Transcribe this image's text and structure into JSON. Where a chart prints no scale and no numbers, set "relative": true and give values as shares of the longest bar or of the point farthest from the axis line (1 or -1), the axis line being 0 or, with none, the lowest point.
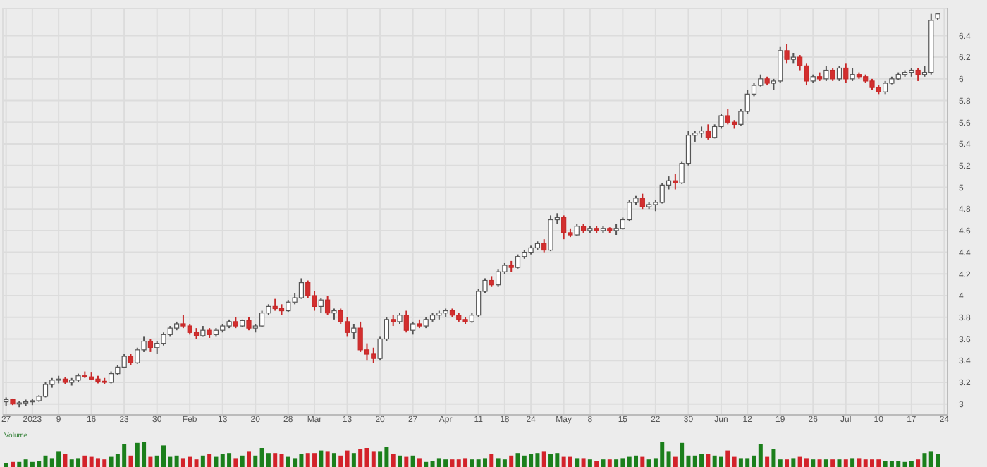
{
  "chart_data": [
    {
      "type": "candlestick",
      "categories": [
        "27",
        null,
        null,
        null,
        "2023",
        null,
        null,
        null,
        "9",
        null,
        null,
        null,
        null,
        "16",
        null,
        null,
        null,
        null,
        "23",
        null,
        null,
        null,
        null,
        "30",
        null,
        null,
        null,
        null,
        "Feb",
        null,
        null,
        null,
        null,
        "13",
        null,
        null,
        null,
        null,
        "20",
        null,
        null,
        null,
        null,
        "28",
        null,
        null,
        null,
        "Mar",
        null,
        null,
        null,
        null,
        "13",
        null,
        null,
        null,
        null,
        "20",
        null,
        null,
        null,
        null,
        "27",
        null,
        null,
        null,
        null,
        "Apr",
        null,
        null,
        null,
        null,
        "11",
        null,
        null,
        null,
        "18",
        null,
        null,
        null,
        "24",
        null,
        null,
        null,
        null,
        "May",
        null,
        null,
        null,
        "8",
        null,
        null,
        null,
        null,
        "15",
        null,
        null,
        null,
        null,
        "22",
        null,
        null,
        null,
        null,
        "30",
        null,
        null,
        null,
        null,
        "Jun",
        null,
        null,
        null,
        "12",
        null,
        null,
        null,
        null,
        "19",
        null,
        null,
        null,
        null,
        "26",
        null,
        null,
        null,
        null,
        "Jul",
        null,
        null,
        null,
        null,
        "10",
        null,
        null,
        null,
        null,
        "17",
        null,
        null,
        null,
        null,
        "24"
      ],
      "ohlc": [
        [
          3.02,
          3.06,
          2.98,
          3.04
        ],
        [
          3.04,
          3.05,
          2.99,
          3.0
        ],
        [
          3.0,
          3.03,
          2.97,
          3.01
        ],
        [
          3.01,
          3.04,
          2.98,
          3.02
        ],
        [
          3.02,
          3.05,
          2.99,
          3.03
        ],
        [
          3.03,
          3.08,
          3.02,
          3.07
        ],
        [
          3.07,
          3.2,
          3.06,
          3.18
        ],
        [
          3.18,
          3.24,
          3.15,
          3.22
        ],
        [
          3.22,
          3.26,
          3.19,
          3.23
        ],
        [
          3.23,
          3.25,
          3.18,
          3.2
        ],
        [
          3.2,
          3.24,
          3.17,
          3.22
        ],
        [
          3.22,
          3.28,
          3.2,
          3.26
        ],
        [
          3.26,
          3.3,
          3.24,
          3.25
        ],
        [
          3.25,
          3.29,
          3.22,
          3.23
        ],
        [
          3.23,
          3.26,
          3.19,
          3.21
        ],
        [
          3.21,
          3.24,
          3.18,
          3.2
        ],
        [
          3.2,
          3.3,
          3.19,
          3.28
        ],
        [
          3.28,
          3.36,
          3.27,
          3.34
        ],
        [
          3.34,
          3.46,
          3.33,
          3.44
        ],
        [
          3.44,
          3.46,
          3.36,
          3.38
        ],
        [
          3.38,
          3.52,
          3.37,
          3.5
        ],
        [
          3.5,
          3.62,
          3.48,
          3.58
        ],
        [
          3.58,
          3.6,
          3.48,
          3.52
        ],
        [
          3.52,
          3.58,
          3.46,
          3.56
        ],
        [
          3.56,
          3.66,
          3.54,
          3.64
        ],
        [
          3.64,
          3.72,
          3.62,
          3.7
        ],
        [
          3.7,
          3.76,
          3.68,
          3.74
        ],
        [
          3.74,
          3.82,
          3.7,
          3.72
        ],
        [
          3.72,
          3.74,
          3.64,
          3.66
        ],
        [
          3.66,
          3.7,
          3.6,
          3.63
        ],
        [
          3.63,
          3.72,
          3.62,
          3.68
        ],
        [
          3.68,
          3.7,
          3.61,
          3.64
        ],
        [
          3.64,
          3.7,
          3.62,
          3.68
        ],
        [
          3.68,
          3.74,
          3.66,
          3.72
        ],
        [
          3.72,
          3.78,
          3.7,
          3.76
        ],
        [
          3.76,
          3.8,
          3.7,
          3.72
        ],
        [
          3.72,
          3.78,
          3.71,
          3.77
        ],
        [
          3.77,
          3.8,
          3.68,
          3.7
        ],
        [
          3.7,
          3.74,
          3.66,
          3.72
        ],
        [
          3.72,
          3.86,
          3.71,
          3.84
        ],
        [
          3.84,
          3.92,
          3.82,
          3.9
        ],
        [
          3.9,
          3.97,
          3.86,
          3.88
        ],
        [
          3.88,
          3.92,
          3.82,
          3.86
        ],
        [
          3.86,
          3.96,
          3.85,
          3.94
        ],
        [
          3.94,
          4.02,
          3.92,
          3.98
        ],
        [
          3.98,
          4.16,
          3.97,
          4.12
        ],
        [
          4.12,
          4.14,
          3.98,
          4.0
        ],
        [
          4.0,
          4.04,
          3.86,
          3.9
        ],
        [
          3.9,
          3.98,
          3.84,
          3.96
        ],
        [
          3.96,
          4.0,
          3.82,
          3.84
        ],
        [
          3.84,
          3.88,
          3.78,
          3.86
        ],
        [
          3.86,
          3.88,
          3.74,
          3.76
        ],
        [
          3.76,
          3.8,
          3.62,
          3.66
        ],
        [
          3.66,
          3.74,
          3.6,
          3.7
        ],
        [
          3.7,
          3.76,
          3.48,
          3.5
        ],
        [
          3.5,
          3.56,
          3.4,
          3.46
        ],
        [
          3.46,
          3.52,
          3.38,
          3.42
        ],
        [
          3.42,
          3.62,
          3.4,
          3.6
        ],
        [
          3.6,
          3.8,
          3.58,
          3.78
        ],
        [
          3.78,
          3.82,
          3.72,
          3.76
        ],
        [
          3.76,
          3.84,
          3.74,
          3.82
        ],
        [
          3.82,
          3.86,
          3.66,
          3.68
        ],
        [
          3.68,
          3.76,
          3.64,
          3.74
        ],
        [
          3.74,
          3.78,
          3.7,
          3.72
        ],
        [
          3.72,
          3.8,
          3.7,
          3.78
        ],
        [
          3.78,
          3.84,
          3.76,
          3.82
        ],
        [
          3.82,
          3.86,
          3.78,
          3.84
        ],
        [
          3.84,
          3.88,
          3.8,
          3.86
        ],
        [
          3.86,
          3.88,
          3.8,
          3.82
        ],
        [
          3.82,
          3.84,
          3.76,
          3.78
        ],
        [
          3.78,
          3.8,
          3.74,
          3.76
        ],
        [
          3.76,
          3.84,
          3.75,
          3.82
        ],
        [
          3.82,
          4.06,
          3.8,
          4.04
        ],
        [
          4.04,
          4.16,
          4.02,
          4.14
        ],
        [
          4.14,
          4.18,
          4.08,
          4.1
        ],
        [
          4.1,
          4.24,
          4.08,
          4.22
        ],
        [
          4.22,
          4.3,
          4.2,
          4.28
        ],
        [
          4.28,
          4.32,
          4.22,
          4.26
        ],
        [
          4.26,
          4.38,
          4.25,
          4.36
        ],
        [
          4.36,
          4.42,
          4.34,
          4.4
        ],
        [
          4.4,
          4.46,
          4.38,
          4.44
        ],
        [
          4.44,
          4.5,
          4.42,
          4.48
        ],
        [
          4.48,
          4.52,
          4.4,
          4.42
        ],
        [
          4.42,
          4.74,
          4.41,
          4.7
        ],
        [
          4.7,
          4.76,
          4.66,
          4.72
        ],
        [
          4.72,
          4.74,
          4.52,
          4.58
        ],
        [
          4.58,
          4.62,
          4.54,
          4.56
        ],
        [
          4.56,
          4.66,
          4.55,
          4.64
        ],
        [
          4.64,
          4.66,
          4.58,
          4.6
        ],
        [
          4.6,
          4.64,
          4.58,
          4.62
        ],
        [
          4.62,
          4.64,
          4.58,
          4.6
        ],
        [
          4.6,
          4.64,
          4.58,
          4.62
        ],
        [
          4.62,
          4.63,
          4.58,
          4.6
        ],
        [
          4.6,
          4.66,
          4.56,
          4.62
        ],
        [
          4.62,
          4.72,
          4.61,
          4.7
        ],
        [
          4.7,
          4.88,
          4.69,
          4.86
        ],
        [
          4.86,
          4.92,
          4.84,
          4.9
        ],
        [
          4.9,
          4.94,
          4.8,
          4.82
        ],
        [
          4.82,
          4.86,
          4.8,
          4.84
        ],
        [
          4.84,
          4.88,
          4.78,
          4.86
        ],
        [
          4.86,
          5.04,
          4.85,
          5.02
        ],
        [
          5.02,
          5.1,
          4.98,
          5.06
        ],
        [
          5.06,
          5.12,
          4.98,
          5.04
        ],
        [
          5.04,
          5.24,
          5.03,
          5.22
        ],
        [
          5.22,
          5.52,
          5.2,
          5.48
        ],
        [
          5.48,
          5.52,
          5.42,
          5.5
        ],
        [
          5.5,
          5.56,
          5.46,
          5.52
        ],
        [
          5.52,
          5.58,
          5.44,
          5.46
        ],
        [
          5.46,
          5.58,
          5.45,
          5.56
        ],
        [
          5.56,
          5.68,
          5.54,
          5.66
        ],
        [
          5.66,
          5.72,
          5.58,
          5.6
        ],
        [
          5.6,
          5.62,
          5.54,
          5.58
        ],
        [
          5.58,
          5.72,
          5.57,
          5.7
        ],
        [
          5.7,
          5.9,
          5.68,
          5.86
        ],
        [
          5.86,
          5.96,
          5.84,
          5.94
        ],
        [
          5.94,
          6.04,
          5.93,
          6.0
        ],
        [
          6.0,
          6.02,
          5.94,
          5.96
        ],
        [
          5.96,
          6.0,
          5.9,
          5.98
        ],
        [
          5.98,
          6.3,
          5.96,
          6.26
        ],
        [
          6.26,
          6.32,
          6.14,
          6.18
        ],
        [
          6.18,
          6.24,
          6.14,
          6.2
        ],
        [
          6.2,
          6.22,
          6.08,
          6.12
        ],
        [
          6.12,
          6.14,
          5.94,
          5.98
        ],
        [
          5.98,
          6.04,
          5.96,
          6.02
        ],
        [
          6.02,
          6.06,
          5.98,
          6.0
        ],
        [
          6.0,
          6.12,
          5.98,
          6.08
        ],
        [
          6.08,
          6.1,
          5.98,
          6.0
        ],
        [
          6.0,
          6.12,
          5.98,
          6.1
        ],
        [
          6.1,
          6.14,
          5.96,
          6.0
        ],
        [
          6.0,
          6.1,
          5.98,
          6.04
        ],
        [
          6.04,
          6.06,
          6.0,
          6.02
        ],
        [
          6.02,
          6.04,
          5.96,
          5.98
        ],
        [
          5.98,
          6.0,
          5.9,
          5.92
        ],
        [
          5.92,
          5.94,
          5.86,
          5.88
        ],
        [
          5.88,
          5.98,
          5.86,
          5.96
        ],
        [
          5.96,
          6.02,
          5.95,
          6.0
        ],
        [
          6.0,
          6.06,
          5.99,
          6.04
        ],
        [
          6.04,
          6.08,
          6.02,
          6.06
        ],
        [
          6.06,
          6.1,
          6.02,
          6.08
        ],
        [
          6.08,
          6.1,
          5.98,
          6.04
        ],
        [
          6.04,
          6.12,
          6.02,
          6.06
        ],
        [
          6.06,
          6.6,
          6.04,
          6.54
        ],
        [
          6.56,
          6.6,
          6.54,
          6.6
        ],
        null
      ],
      "ylim": [
        2.9,
        6.65
      ],
      "yticks": [
        3,
        3.2,
        3.4,
        3.6,
        3.8,
        4,
        4.2,
        4.4,
        4.6,
        4.8,
        5,
        5.2,
        5.4,
        5.6,
        5.8,
        6,
        6.2,
        6.4
      ],
      "grid": true
    },
    {
      "type": "bar",
      "title": "Volume",
      "relative": true,
      "tick_labels": false,
      "values": [
        0.15,
        0.2,
        0.2,
        0.3,
        0.2,
        0.25,
        0.45,
        0.35,
        0.6,
        0.5,
        0.3,
        0.35,
        0.45,
        0.4,
        0.35,
        0.3,
        0.4,
        0.5,
        0.9,
        0.45,
        0.95,
        1,
        0.4,
        0.45,
        0.85,
        0.4,
        0.45,
        0.35,
        0.4,
        0.3,
        0.45,
        0.5,
        0.4,
        0.5,
        0.55,
        0.35,
        0.45,
        0.6,
        0.45,
        0.75,
        0.55,
        0.55,
        0.5,
        0.4,
        0.35,
        0.5,
        0.55,
        0.55,
        0.65,
        0.6,
        0.55,
        0.45,
        0.65,
        0.55,
        0.7,
        0.75,
        0.6,
        0.6,
        0.8,
        0.5,
        0.45,
        0.4,
        0.45,
        0.35,
        0.2,
        0.25,
        0.35,
        0.3,
        0.3,
        0.3,
        0.35,
        0.3,
        0.3,
        0.35,
        0.5,
        0.35,
        0.3,
        0.45,
        0.55,
        0.45,
        0.5,
        0.55,
        0.6,
        0.5,
        0.55,
        0.4,
        0.4,
        0.35,
        0.35,
        0.3,
        0.25,
        0.3,
        0.3,
        0.3,
        0.35,
        0.4,
        0.45,
        0.4,
        0.3,
        0.35,
        1,
        0.6,
        0.4,
        0.95,
        0.45,
        0.45,
        0.5,
        0.5,
        0.45,
        0.4,
        0.65,
        0.4,
        0.35,
        0.35,
        0.45,
        0.9,
        0.4,
        0.7,
        0.3,
        0.3,
        0.35,
        0.4,
        0.35,
        0.3,
        0.3,
        0.3,
        0.3,
        0.3,
        0.3,
        0.35,
        0.35,
        0.3,
        0.3,
        0.3,
        0.25,
        0.25,
        0.25,
        0.2,
        0.25,
        0.3,
        0.55,
        0.6,
        0.5,
        null
      ],
      "colors": [
        "#1b7f1b",
        "#d3222a",
        "#1b7f1b",
        "#1b7f1b",
        "#1b7f1b",
        "#1b7f1b",
        "#1b7f1b",
        "#1b7f1b",
        "#1b7f1b",
        "#d3222a",
        "#1b7f1b",
        "#1b7f1b",
        "#d3222a",
        "#d3222a",
        "#d3222a",
        "#d3222a",
        "#1b7f1b",
        "#1b7f1b",
        "#1b7f1b",
        "#d3222a",
        "#1b7f1b",
        "#1b7f1b",
        "#d3222a",
        "#1b7f1b",
        "#1b7f1b",
        "#1b7f1b",
        "#1b7f1b",
        "#d3222a",
        "#d3222a",
        "#d3222a",
        "#1b7f1b",
        "#d3222a",
        "#1b7f1b",
        "#1b7f1b",
        "#1b7f1b",
        "#d3222a",
        "#1b7f1b",
        "#d3222a",
        "#1b7f1b",
        "#1b7f1b",
        "#1b7f1b",
        "#d3222a",
        "#d3222a",
        "#1b7f1b",
        "#1b7f1b",
        "#1b7f1b",
        "#d3222a",
        "#d3222a",
        "#1b7f1b",
        "#d3222a",
        "#1b7f1b",
        "#d3222a",
        "#d3222a",
        "#1b7f1b",
        "#d3222a",
        "#d3222a",
        "#d3222a",
        "#1b7f1b",
        "#1b7f1b",
        "#d3222a",
        "#1b7f1b",
        "#d3222a",
        "#1b7f1b",
        "#d3222a",
        "#1b7f1b",
        "#1b7f1b",
        "#1b7f1b",
        "#1b7f1b",
        "#d3222a",
        "#d3222a",
        "#d3222a",
        "#1b7f1b",
        "#1b7f1b",
        "#1b7f1b",
        "#d3222a",
        "#1b7f1b",
        "#1b7f1b",
        "#d3222a",
        "#1b7f1b",
        "#1b7f1b",
        "#1b7f1b",
        "#1b7f1b",
        "#d3222a",
        "#1b7f1b",
        "#1b7f1b",
        "#d3222a",
        "#d3222a",
        "#1b7f1b",
        "#d3222a",
        "#1b7f1b",
        "#d3222a",
        "#1b7f1b",
        "#d3222a",
        "#1b7f1b",
        "#1b7f1b",
        "#1b7f1b",
        "#1b7f1b",
        "#d3222a",
        "#1b7f1b",
        "#1b7f1b",
        "#1b7f1b",
        "#1b7f1b",
        "#d3222a",
        "#1b7f1b",
        "#1b7f1b",
        "#1b7f1b",
        "#1b7f1b",
        "#d3222a",
        "#1b7f1b",
        "#1b7f1b",
        "#d3222a",
        "#d3222a",
        "#1b7f1b",
        "#1b7f1b",
        "#1b7f1b",
        "#1b7f1b",
        "#d3222a",
        "#1b7f1b",
        "#1b7f1b",
        "#d3222a",
        "#1b7f1b",
        "#d3222a",
        "#d3222a",
        "#1b7f1b",
        "#d3222a",
        "#1b7f1b",
        "#d3222a",
        "#1b7f1b",
        "#d3222a",
        "#1b7f1b",
        "#d3222a",
        "#d3222a",
        "#d3222a",
        "#d3222a",
        "#1b7f1b",
        "#1b7f1b",
        "#1b7f1b",
        "#1b7f1b",
        "#1b7f1b",
        "#d3222a",
        "#1b7f1b",
        "#1b7f1b",
        "#1b7f1b",
        null
      ]
    }
  ]
}
